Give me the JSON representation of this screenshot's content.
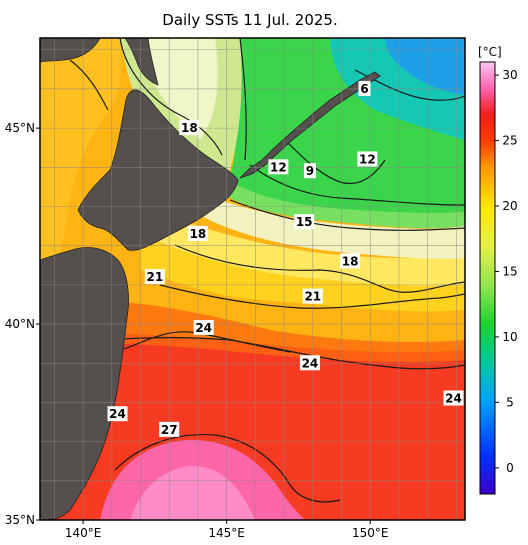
{
  "title": "Daily SSTs 11 Jul. 2025.",
  "map": {
    "lon_range": [
      138.5,
      153.3
    ],
    "lat_range": [
      35,
      47.3
    ],
    "lon_ticks": [
      {
        "value": 140,
        "label": "140°E"
      },
      {
        "value": 145,
        "label": "145°E"
      },
      {
        "value": 150,
        "label": "150°E"
      }
    ],
    "lat_ticks": [
      {
        "value": 45,
        "label": "45°N"
      },
      {
        "value": 40,
        "label": "40°N"
      },
      {
        "value": 35,
        "label": "35°N"
      }
    ],
    "grid": "every 1 degree",
    "land_color": "#55504e"
  },
  "colorbar": {
    "unit": "[°C]",
    "min": -2,
    "max": 31,
    "ticks": [
      "0",
      "5",
      "10",
      "15",
      "20",
      "25",
      "30"
    ],
    "tick_values": [
      0,
      5,
      10,
      15,
      20,
      25,
      30
    ],
    "stops": [
      {
        "t": -2,
        "color": "#3c00c8"
      },
      {
        "t": 1,
        "color": "#0032ff"
      },
      {
        "t": 5,
        "color": "#00a0ff"
      },
      {
        "t": 8,
        "color": "#00c8a0"
      },
      {
        "t": 11,
        "color": "#1ed232"
      },
      {
        "t": 14,
        "color": "#96e650"
      },
      {
        "t": 17,
        "color": "#e6f046"
      },
      {
        "t": 20,
        "color": "#ffe600"
      },
      {
        "t": 23,
        "color": "#ff9600"
      },
      {
        "t": 25,
        "color": "#ff3c00"
      },
      {
        "t": 27,
        "color": "#f01e1e"
      },
      {
        "t": 29,
        "color": "#ff64b4"
      },
      {
        "t": 31,
        "color": "#ffc8f0"
      }
    ]
  },
  "contour_labels": [
    {
      "text": "6",
      "lon": 149.8,
      "lat": 46.0
    },
    {
      "text": "18",
      "lon": 143.7,
      "lat": 45.0
    },
    {
      "text": "12",
      "lon": 146.8,
      "lat": 44.0
    },
    {
      "text": "9",
      "lon": 147.9,
      "lat": 43.9
    },
    {
      "text": "12",
      "lon": 149.9,
      "lat": 44.2
    },
    {
      "text": "15",
      "lon": 147.7,
      "lat": 42.6
    },
    {
      "text": "18",
      "lon": 144.0,
      "lat": 42.3
    },
    {
      "text": "18",
      "lon": 149.3,
      "lat": 41.6
    },
    {
      "text": "21",
      "lon": 142.5,
      "lat": 41.2
    },
    {
      "text": "21",
      "lon": 148.0,
      "lat": 40.7
    },
    {
      "text": "24",
      "lon": 144.2,
      "lat": 39.9
    },
    {
      "text": "24",
      "lon": 147.9,
      "lat": 39.0
    },
    {
      "text": "24",
      "lon": 152.9,
      "lat": 38.1
    },
    {
      "text": "24",
      "lon": 141.2,
      "lat": 37.7
    },
    {
      "text": "27",
      "lon": 143.0,
      "lat": 37.3
    }
  ]
}
